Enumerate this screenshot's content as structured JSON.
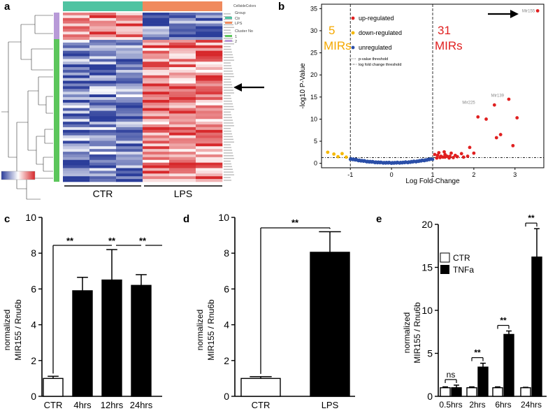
{
  "panels": {
    "a": {
      "letter": "a",
      "legend": {
        "title": "CellsideColors",
        "group_heading": "Group",
        "group_items": [
          {
            "label": "Ctr",
            "color": "#4fc3a1"
          },
          {
            "label": "LPS",
            "color": "#f08a5d"
          }
        ],
        "cluster_heading": "Cluster No",
        "cluster_items": [
          {
            "label": "1",
            "color": "#5cc65c"
          },
          {
            "label": "2",
            "color": "#b89ad8"
          }
        ]
      },
      "x_groups": [
        "CTR",
        "LPS"
      ],
      "colors": {
        "low": "#2b3d9a",
        "mid": "#ffffff",
        "high": "#d7282b"
      }
    },
    "b": {
      "letter": "b",
      "type": "scatter",
      "xlabel": "Log Fold-Change",
      "ylabel": "-log10 P-Value",
      "xlim": [
        -1.7,
        3.7
      ],
      "ylim": [
        -1,
        36
      ],
      "xticks": [
        -1,
        0,
        1,
        2,
        3
      ],
      "yticks": [
        0,
        5,
        10,
        15,
        20,
        25,
        30,
        35
      ],
      "legend": [
        {
          "label": "up-regulated",
          "color": "#e02020"
        },
        {
          "label": "down-regulated",
          "color": "#f5b800"
        },
        {
          "label": "unregulated",
          "color": "#2b4fa8"
        }
      ],
      "threshold_labels": [
        "p-value threshold",
        "log fold change threshold"
      ],
      "down_count": "5",
      "down_unit": "MIRs",
      "up_count": "31",
      "up_unit": "MIRs",
      "down_color": "#f5a800",
      "up_color": "#e02020",
      "annotations": [
        {
          "text": "Mir155",
          "x": 3.55,
          "y": 34.5
        },
        {
          "text": "Mir139",
          "x": 2.8,
          "y": 14.6
        },
        {
          "text": "Mir225",
          "x": 2.1,
          "y": 13.0
        }
      ],
      "up_points": [
        [
          3.55,
          34.5
        ],
        [
          2.85,
          14.5
        ],
        [
          2.5,
          13.2
        ],
        [
          2.1,
          10.5
        ],
        [
          2.3,
          10.0
        ],
        [
          3.05,
          10.3
        ],
        [
          2.65,
          6.5
        ],
        [
          2.55,
          5.8
        ],
        [
          2.95,
          4.0
        ],
        [
          1.9,
          3.6
        ],
        [
          1.7,
          2.2
        ],
        [
          2.0,
          2.3
        ],
        [
          1.45,
          2.3
        ],
        [
          1.3,
          2.0
        ],
        [
          1.2,
          1.6
        ],
        [
          1.12,
          1.8
        ],
        [
          1.25,
          1.4
        ],
        [
          1.5,
          1.3
        ],
        [
          1.35,
          1.6
        ],
        [
          1.05,
          2.0
        ],
        [
          1.1,
          1.2
        ],
        [
          1.4,
          1.2
        ],
        [
          1.55,
          1.8
        ],
        [
          1.6,
          1.5
        ],
        [
          1.18,
          1.3
        ],
        [
          1.3,
          1.4
        ],
        [
          1.42,
          1.6
        ],
        [
          1.15,
          2.4
        ],
        [
          1.75,
          1.4
        ],
        [
          1.85,
          1.6
        ],
        [
          1.28,
          2.6
        ]
      ],
      "down_points": [
        [
          -1.55,
          2.5
        ],
        [
          -1.4,
          2.1
        ],
        [
          -1.2,
          2.2
        ],
        [
          -1.3,
          1.5
        ],
        [
          -1.1,
          1.4
        ]
      ],
      "unreg_range": [
        -1.0,
        1.0
      ]
    },
    "c": {
      "letter": "c",
      "type": "bar",
      "ylabel_line1": "normalized",
      "ylabel_line2": "MIR155 / Rnu6b",
      "categories": [
        "CTR",
        "4hrs",
        "12hrs",
        "24hrs"
      ],
      "values": [
        1.0,
        5.9,
        6.5,
        6.2
      ],
      "errors": [
        0.12,
        0.75,
        1.7,
        0.6
      ],
      "fill": [
        "white",
        "black",
        "black",
        "black"
      ],
      "ylim": [
        0,
        10
      ],
      "yticks": [
        0,
        2,
        4,
        6,
        8,
        10
      ],
      "sig_label": "**"
    },
    "d": {
      "letter": "d",
      "type": "bar",
      "ylabel_line1": "normalized",
      "ylabel_line2": "MIR155 / Rnu6b",
      "categories": [
        "CTR",
        "LPS"
      ],
      "values": [
        1.0,
        8.05
      ],
      "errors": [
        0.1,
        1.15
      ],
      "fill": [
        "white",
        "black"
      ],
      "ylim": [
        0,
        10
      ],
      "yticks": [
        0,
        2,
        4,
        6,
        8,
        10
      ],
      "sig_label": "**"
    },
    "e": {
      "letter": "e",
      "type": "bar",
      "ylabel_line1": "normalized",
      "ylabel_line2": "MIR155 / Rnu6b",
      "categories": [
        "0.5hrs",
        "2hrs",
        "6hrs",
        "24hrs"
      ],
      "series": [
        {
          "name": "CTR",
          "values": [
            1.0,
            1.0,
            1.0,
            1.0
          ],
          "errors": [
            0.1,
            0.1,
            0.1,
            0.05
          ],
          "fill": "white"
        },
        {
          "name": "TNFa",
          "values": [
            1.0,
            3.4,
            7.2,
            16.2
          ],
          "errors": [
            0.3,
            0.45,
            0.4,
            3.3
          ],
          "fill": "black"
        }
      ],
      "sig_labels": [
        "ns",
        "**",
        "**",
        "**"
      ],
      "ylim": [
        0,
        20
      ],
      "yticks": [
        0,
        5,
        10,
        15,
        20
      ]
    }
  }
}
